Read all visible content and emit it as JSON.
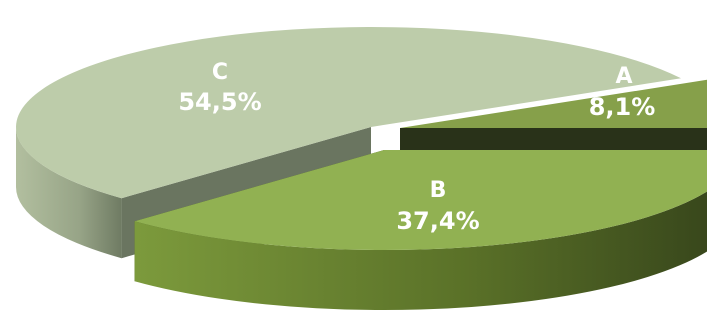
{
  "chart_data": {
    "type": "pie",
    "style": "3d-exploded",
    "slices": [
      {
        "label": "A",
        "value": 8.1,
        "value_label": "8,1%",
        "top": "#86a04a",
        "side": "#414f22",
        "cut": "#293219"
      },
      {
        "label": "B",
        "value": 37.4,
        "value_label": "37,4%",
        "top": "#91b152",
        "side": "#5a7128",
        "cut": "#3b4a1c"
      },
      {
        "label": "C",
        "value": 54.5,
        "value_label": "54,5%",
        "top": "#bdccaa",
        "side": "#9aa98b",
        "cut": "#6a7560"
      }
    ]
  }
}
